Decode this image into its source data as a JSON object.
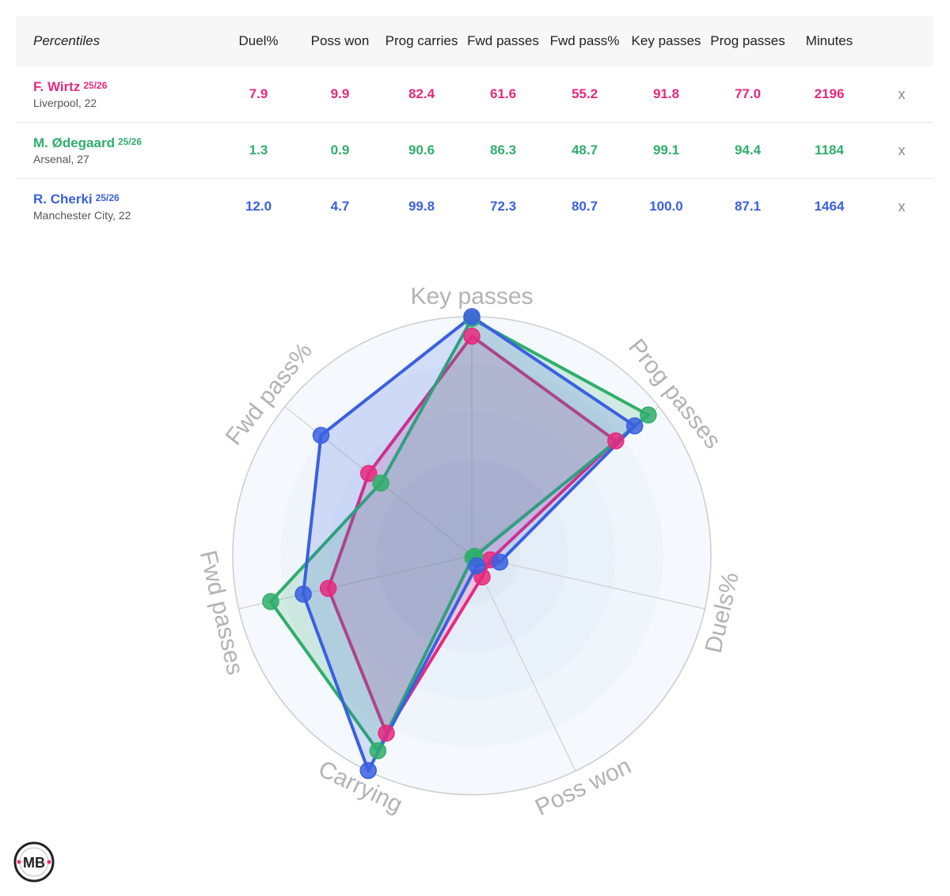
{
  "table": {
    "header_label": "Percentiles",
    "columns": [
      "Duel%",
      "Poss won",
      "Prog carries",
      "Fwd passes",
      "Fwd pass%",
      "Key passes",
      "Prog passes",
      "Minutes"
    ],
    "remove_label": "x"
  },
  "players": [
    {
      "name": "F. Wirtz",
      "season": "25/26",
      "club": "Liverpool, 22",
      "color": "#e8297d",
      "stats": [
        "7.9",
        "9.9",
        "82.4",
        "61.6",
        "55.2",
        "91.8",
        "77.0",
        "2196"
      ]
    },
    {
      "name": "M. Ødegaard",
      "season": "25/26",
      "club": "Arsenal, 27",
      "color": "#2fae6b",
      "stats": [
        "1.3",
        "0.9",
        "90.6",
        "86.3",
        "48.7",
        "99.1",
        "94.4",
        "1184"
      ]
    },
    {
      "name": "R. Cherki",
      "season": "25/26",
      "club": "Manchester City, 22",
      "color": "#3a60e0",
      "stats": [
        "12.0",
        "4.7",
        "99.8",
        "72.3",
        "80.7",
        "100.0",
        "87.1",
        "1464"
      ]
    }
  ],
  "logo": {
    "text": "MB",
    "icon": "mb-logo-icon"
  },
  "chart_data": {
    "type": "radar",
    "axes": [
      "Key passes",
      "Prog passes",
      "Duels%",
      "Poss won",
      "Carrying",
      "Fwd passes",
      "Fwd pass%"
    ],
    "range": [
      0,
      100
    ],
    "series": [
      {
        "name": "F. Wirtz",
        "color": "#e8297d",
        "values": [
          91.8,
          77.0,
          7.9,
          9.9,
          82.4,
          61.6,
          55.2
        ]
      },
      {
        "name": "M. Ødegaard",
        "color": "#2fae6b",
        "values": [
          99.1,
          94.4,
          1.3,
          0.9,
          90.6,
          86.3,
          48.7
        ]
      },
      {
        "name": "R. Cherki",
        "color": "#3a60e0",
        "values": [
          100.0,
          87.1,
          12.0,
          4.7,
          99.8,
          72.3,
          80.7
        ]
      }
    ]
  }
}
